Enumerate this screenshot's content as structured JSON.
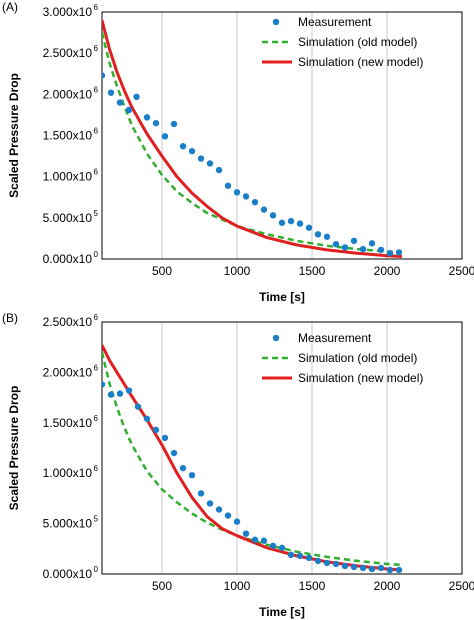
{
  "chart_data": [
    {
      "type": "scatter+line",
      "panel_label": "(A)",
      "xlabel": "Time [s]",
      "ylabel": "Scaled Pressure Drop",
      "xlim": [
        100,
        2500
      ],
      "ylim": [
        0,
        3000000
      ],
      "x_ticks": [
        500,
        1000,
        1500,
        2000,
        2500
      ],
      "y_ticks": [
        {
          "value": 0,
          "mantissa": "0.000x10",
          "exp": "0"
        },
        {
          "value": 500000,
          "mantissa": "5.000x10",
          "exp": "5"
        },
        {
          "value": 1000000,
          "mantissa": "1.000x10",
          "exp": "6"
        },
        {
          "value": 1500000,
          "mantissa": "1.500x10",
          "exp": "6"
        },
        {
          "value": 2000000,
          "mantissa": "2.000x10",
          "exp": "6"
        },
        {
          "value": 2500000,
          "mantissa": "2.500x10",
          "exp": "6"
        },
        {
          "value": 3000000,
          "mantissa": "3.000x10",
          "exp": "6"
        }
      ],
      "grid": "vertical",
      "legend_position": "top-right",
      "series": [
        {
          "name": "Measurement",
          "kind": "markers",
          "color": "#1a7fc8",
          "x": [
            100,
            160,
            220,
            280,
            330,
            400,
            460,
            520,
            580,
            640,
            700,
            760,
            820,
            880,
            940,
            1000,
            1060,
            1120,
            1180,
            1240,
            1300,
            1360,
            1420,
            1480,
            1540,
            1600,
            1660,
            1720,
            1780,
            1840,
            1900,
            1960,
            2020,
            2080
          ],
          "y": [
            2230000,
            2020000,
            1900000,
            1810000,
            1970000,
            1720000,
            1650000,
            1490000,
            1640000,
            1370000,
            1310000,
            1220000,
            1160000,
            1080000,
            890000,
            810000,
            760000,
            690000,
            600000,
            530000,
            440000,
            460000,
            430000,
            380000,
            300000,
            270000,
            180000,
            140000,
            220000,
            120000,
            190000,
            110000,
            70000,
            80000
          ]
        },
        {
          "name": "Simulation (old model)",
          "kind": "dashed",
          "color": "#2fae2f",
          "x": [
            100,
            150,
            200,
            250,
            300,
            400,
            500,
            600,
            700,
            800,
            900,
            1000,
            1200,
            1400,
            1600,
            1800,
            2000,
            2100
          ],
          "y": [
            2750000,
            2380000,
            2100000,
            1850000,
            1620000,
            1280000,
            1020000,
            820000,
            680000,
            560000,
            480000,
            400000,
            300000,
            220000,
            160000,
            120000,
            90000,
            80000
          ]
        },
        {
          "name": "Simulation (new model)",
          "kind": "solid",
          "color": "#e02020",
          "x": [
            100,
            150,
            200,
            250,
            300,
            400,
            500,
            600,
            700,
            800,
            900,
            1000,
            1200,
            1400,
            1600,
            1800,
            2000,
            2100
          ],
          "y": [
            2900000,
            2550000,
            2270000,
            2040000,
            1840000,
            1520000,
            1250000,
            1000000,
            800000,
            640000,
            500000,
            400000,
            260000,
            170000,
            110000,
            70000,
            40000,
            30000
          ]
        }
      ]
    },
    {
      "type": "scatter+line",
      "panel_label": "(B)",
      "xlabel": "Time [s]",
      "ylabel": "Scaled Pressure Drop",
      "xlim": [
        100,
        2500
      ],
      "ylim": [
        0,
        2500000
      ],
      "x_ticks": [
        500,
        1000,
        1500,
        2000,
        2500
      ],
      "y_ticks": [
        {
          "value": 0,
          "mantissa": "0.000x10",
          "exp": "0"
        },
        {
          "value": 500000,
          "mantissa": "5.000x10",
          "exp": "5"
        },
        {
          "value": 1000000,
          "mantissa": "1.000x10",
          "exp": "6"
        },
        {
          "value": 1500000,
          "mantissa": "1.500x10",
          "exp": "6"
        },
        {
          "value": 2000000,
          "mantissa": "2.000x10",
          "exp": "6"
        },
        {
          "value": 2500000,
          "mantissa": "2.500x10",
          "exp": "6"
        }
      ],
      "grid": "vertical",
      "legend_position": "top-right",
      "series": [
        {
          "name": "Measurement",
          "kind": "markers",
          "color": "#1a7fc8",
          "x": [
            100,
            160,
            220,
            280,
            340,
            400,
            460,
            520,
            580,
            640,
            700,
            760,
            820,
            880,
            940,
            1000,
            1060,
            1120,
            1180,
            1240,
            1300,
            1360,
            1420,
            1480,
            1540,
            1600,
            1660,
            1720,
            1780,
            1840,
            1900,
            1960,
            2020,
            2080
          ],
          "y": [
            1880000,
            1780000,
            1790000,
            1820000,
            1660000,
            1540000,
            1430000,
            1350000,
            1200000,
            1050000,
            980000,
            800000,
            700000,
            640000,
            580000,
            520000,
            400000,
            340000,
            330000,
            280000,
            260000,
            190000,
            180000,
            160000,
            130000,
            110000,
            100000,
            80000,
            70000,
            60000,
            50000,
            60000,
            40000,
            40000
          ]
        },
        {
          "name": "Simulation (old model)",
          "kind": "dashed",
          "color": "#2fae2f",
          "x": [
            100,
            150,
            200,
            250,
            300,
            400,
            500,
            600,
            700,
            800,
            900,
            1000,
            1200,
            1400,
            1600,
            1800,
            2000,
            2100
          ],
          "y": [
            2200000,
            1890000,
            1650000,
            1450000,
            1280000,
            1020000,
            840000,
            710000,
            600000,
            510000,
            440000,
            380000,
            290000,
            220000,
            170000,
            130000,
            100000,
            90000
          ]
        },
        {
          "name": "Simulation (new model)",
          "kind": "solid",
          "color": "#e02020",
          "x": [
            100,
            150,
            200,
            250,
            300,
            400,
            500,
            600,
            700,
            800,
            900,
            1000,
            1200,
            1400,
            1600,
            1800,
            2000,
            2100
          ],
          "y": [
            2270000,
            2120000,
            2000000,
            1880000,
            1760000,
            1530000,
            1280000,
            1000000,
            760000,
            570000,
            450000,
            380000,
            260000,
            180000,
            120000,
            80000,
            50000,
            40000
          ]
        }
      ]
    }
  ]
}
